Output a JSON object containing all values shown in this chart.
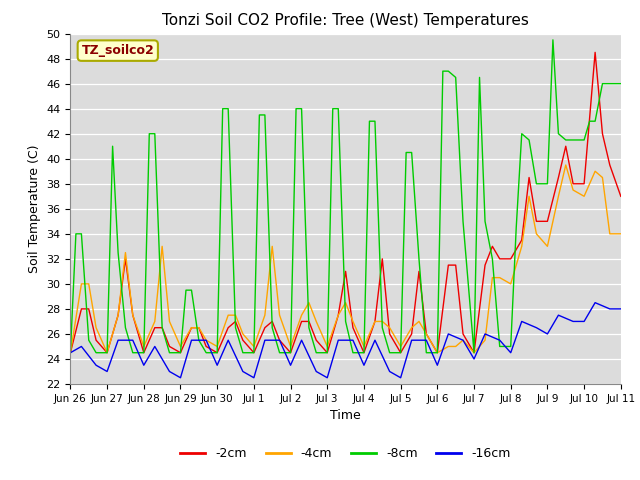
{
  "title": "Tonzi Soil CO2 Profile: Tree (West) Temperatures",
  "xlabel": "Time",
  "ylabel": "Soil Temperature (C)",
  "ylim": [
    22,
    50
  ],
  "xlim_min": 0,
  "xlim_max": 15,
  "legend_label": "TZ_soilco2",
  "legend_text_color": "#8B0000",
  "legend_bg": "#FFFFCC",
  "legend_border": "#AAAA00",
  "bg_color": "#DCDCDC",
  "colors": {
    "-2cm": "#EE0000",
    "-4cm": "#FFA500",
    "-8cm": "#00CC00",
    "-16cm": "#0000EE"
  },
  "tick_labels": [
    "Jun 26",
    "Jun 27",
    "Jun 28",
    "Jun 29",
    "Jun 30",
    "Jul 1",
    "Jul 2",
    "Jul 3",
    "Jul 4",
    "Jul 5",
    "Jul 6",
    "Jul 7",
    "Jul 8",
    "Jul 9",
    "Jul 10",
    "Jul 11"
  ],
  "yticks": [
    22,
    24,
    26,
    28,
    30,
    32,
    34,
    36,
    38,
    40,
    42,
    44,
    46,
    48,
    50
  ],
  "series": {
    "-2cm": {
      "x": [
        0.0,
        0.3,
        0.5,
        0.7,
        1.0,
        1.3,
        1.5,
        1.7,
        2.0,
        2.3,
        2.5,
        2.7,
        3.0,
        3.3,
        3.5,
        3.7,
        4.0,
        4.3,
        4.5,
        4.7,
        5.0,
        5.3,
        5.5,
        5.7,
        6.0,
        6.3,
        6.5,
        6.7,
        7.0,
        7.3,
        7.5,
        7.7,
        8.0,
        8.3,
        8.5,
        8.7,
        9.0,
        9.3,
        9.5,
        9.7,
        10.0,
        10.3,
        10.5,
        10.7,
        11.0,
        11.3,
        11.5,
        11.7,
        12.0,
        12.3,
        12.5,
        12.7,
        13.0,
        13.3,
        13.5,
        13.7,
        14.0,
        14.3,
        14.5,
        14.7,
        15.0
      ],
      "y": [
        24.5,
        28.0,
        28.0,
        25.5,
        24.5,
        27.5,
        32.0,
        27.5,
        24.5,
        26.5,
        26.5,
        25.0,
        24.5,
        26.5,
        26.5,
        25.0,
        24.5,
        26.5,
        27.0,
        25.5,
        24.5,
        26.5,
        27.0,
        25.5,
        24.5,
        27.0,
        27.0,
        25.5,
        24.5,
        27.5,
        31.0,
        26.5,
        24.5,
        27.0,
        32.0,
        26.0,
        24.5,
        26.0,
        31.0,
        26.0,
        24.5,
        31.5,
        31.5,
        26.0,
        24.5,
        31.5,
        33.0,
        32.0,
        32.0,
        33.5,
        38.5,
        35.0,
        35.0,
        38.5,
        41.0,
        38.0,
        38.0,
        48.5,
        42.0,
        39.5,
        37.0
      ]
    },
    "-4cm": {
      "x": [
        0.0,
        0.3,
        0.5,
        0.7,
        1.0,
        1.3,
        1.5,
        1.7,
        2.0,
        2.3,
        2.5,
        2.7,
        3.0,
        3.3,
        3.5,
        3.7,
        4.0,
        4.3,
        4.5,
        4.7,
        5.0,
        5.3,
        5.5,
        5.7,
        6.0,
        6.3,
        6.5,
        6.7,
        7.0,
        7.3,
        7.5,
        7.7,
        8.0,
        8.3,
        8.5,
        8.7,
        9.0,
        9.3,
        9.5,
        9.7,
        10.0,
        10.3,
        10.5,
        10.7,
        11.0,
        11.3,
        11.5,
        11.7,
        12.0,
        12.3,
        12.5,
        12.7,
        13.0,
        13.3,
        13.5,
        13.7,
        14.0,
        14.3,
        14.5,
        14.7,
        15.0
      ],
      "y": [
        24.5,
        30.0,
        30.0,
        26.5,
        24.5,
        27.5,
        32.5,
        27.5,
        25.0,
        27.0,
        33.0,
        27.0,
        25.0,
        26.5,
        26.5,
        25.5,
        25.0,
        27.5,
        27.5,
        26.0,
        25.0,
        27.5,
        33.0,
        27.5,
        25.0,
        27.5,
        28.5,
        27.0,
        25.0,
        27.5,
        28.5,
        27.0,
        25.0,
        27.0,
        27.0,
        26.5,
        25.0,
        26.5,
        27.0,
        26.0,
        24.5,
        25.0,
        25.0,
        25.5,
        24.5,
        25.5,
        30.5,
        30.5,
        30.0,
        33.0,
        37.0,
        34.0,
        33.0,
        37.0,
        39.5,
        37.5,
        37.0,
        39.0,
        38.5,
        34.0,
        34.0
      ]
    },
    "-8cm": {
      "x": [
        0.0,
        0.15,
        0.3,
        0.5,
        0.7,
        1.0,
        1.15,
        1.3,
        1.5,
        1.7,
        2.0,
        2.15,
        2.3,
        2.5,
        2.7,
        3.0,
        3.15,
        3.3,
        3.5,
        3.7,
        4.0,
        4.15,
        4.3,
        4.5,
        4.7,
        5.0,
        5.15,
        5.3,
        5.5,
        5.7,
        6.0,
        6.15,
        6.3,
        6.5,
        6.7,
        7.0,
        7.15,
        7.3,
        7.5,
        7.7,
        8.0,
        8.15,
        8.3,
        8.5,
        8.7,
        9.0,
        9.15,
        9.3,
        9.5,
        9.7,
        10.0,
        10.15,
        10.3,
        10.5,
        10.7,
        11.0,
        11.15,
        11.3,
        11.5,
        11.7,
        12.0,
        12.15,
        12.3,
        12.5,
        12.7,
        13.0,
        13.15,
        13.3,
        13.5,
        13.7,
        14.0,
        14.15,
        14.3,
        14.5,
        14.7,
        15.0
      ],
      "y": [
        24.5,
        34.0,
        34.0,
        25.5,
        24.5,
        24.5,
        41.0,
        32.5,
        26.5,
        24.5,
        24.5,
        42.0,
        42.0,
        26.5,
        24.5,
        24.5,
        29.5,
        29.5,
        25.5,
        24.5,
        24.5,
        44.0,
        44.0,
        26.5,
        24.5,
        24.5,
        43.5,
        43.5,
        26.5,
        24.5,
        24.5,
        44.0,
        44.0,
        26.5,
        24.5,
        24.5,
        44.0,
        44.0,
        27.0,
        24.5,
        24.5,
        43.0,
        43.0,
        26.5,
        24.5,
        24.5,
        40.5,
        40.5,
        32.0,
        24.5,
        24.5,
        47.0,
        47.0,
        46.5,
        35.0,
        24.5,
        46.5,
        35.0,
        32.0,
        25.0,
        25.0,
        34.5,
        42.0,
        41.5,
        38.0,
        38.0,
        49.5,
        42.0,
        41.5,
        41.5,
        41.5,
        43.0,
        43.0,
        46.0,
        46.0,
        46.0
      ]
    },
    "-16cm": {
      "x": [
        0.0,
        0.3,
        0.7,
        1.0,
        1.3,
        1.7,
        2.0,
        2.3,
        2.7,
        3.0,
        3.3,
        3.7,
        4.0,
        4.3,
        4.7,
        5.0,
        5.3,
        5.7,
        6.0,
        6.3,
        6.7,
        7.0,
        7.3,
        7.7,
        8.0,
        8.3,
        8.7,
        9.0,
        9.3,
        9.7,
        10.0,
        10.3,
        10.7,
        11.0,
        11.3,
        11.7,
        12.0,
        12.3,
        12.7,
        13.0,
        13.3,
        13.7,
        14.0,
        14.3,
        14.7,
        15.0
      ],
      "y": [
        24.5,
        25.0,
        23.5,
        23.0,
        25.5,
        25.5,
        23.5,
        25.0,
        23.0,
        22.5,
        25.5,
        25.5,
        23.5,
        25.5,
        23.0,
        22.5,
        25.5,
        25.5,
        23.5,
        25.5,
        23.0,
        22.5,
        25.5,
        25.5,
        23.5,
        25.5,
        23.0,
        22.5,
        25.5,
        25.5,
        23.5,
        26.0,
        25.5,
        24.0,
        26.0,
        25.5,
        24.5,
        27.0,
        26.5,
        26.0,
        27.5,
        27.0,
        27.0,
        28.5,
        28.0,
        28.0
      ]
    }
  }
}
